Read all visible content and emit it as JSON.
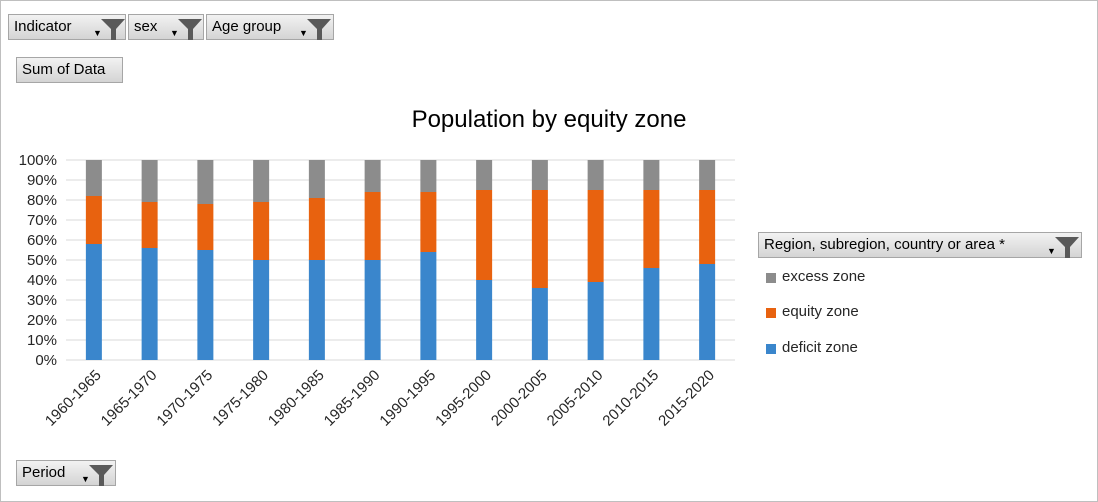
{
  "filters": {
    "indicator": "Indicator",
    "sex": "sex",
    "age_group": "Age group",
    "sum_of_data": "Sum of Data",
    "period": "Period",
    "region": "Region, subregion, country or area *"
  },
  "icons": {
    "filter": "filter-funnel-icon",
    "dropdown": "dropdown-arrow-icon"
  },
  "colors": {
    "deficit": "#3a86cc",
    "equity": "#e8620f",
    "excess": "#8c8c8c"
  },
  "chart_data": {
    "type": "bar",
    "stacked": true,
    "title": "Population by equity zone",
    "categories": [
      "1960-1965",
      "1965-1970",
      "1970-1975",
      "1975-1980",
      "1980-1985",
      "1985-1990",
      "1990-1995",
      "1995-2000",
      "2000-2005",
      "2005-2010",
      "2010-2015",
      "2015-2020"
    ],
    "series": [
      {
        "name": "deficit zone",
        "values": [
          58,
          56,
          55,
          50,
          50,
          50,
          54,
          40,
          36,
          39,
          46,
          48
        ]
      },
      {
        "name": "equity zone",
        "values": [
          24,
          23,
          23,
          29,
          31,
          34,
          30,
          45,
          49,
          46,
          39,
          37
        ]
      },
      {
        "name": "excess zone",
        "values": [
          18,
          21,
          22,
          21,
          19,
          16,
          16,
          15,
          15,
          15,
          15,
          15
        ]
      }
    ],
    "ylim": [
      0,
      100
    ],
    "yticks": [
      "0%",
      "10%",
      "20%",
      "30%",
      "40%",
      "50%",
      "60%",
      "70%",
      "80%",
      "90%",
      "100%"
    ],
    "grid": true,
    "legend": "right",
    "legend_order": [
      "excess zone",
      "equity zone",
      "deficit zone"
    ]
  }
}
